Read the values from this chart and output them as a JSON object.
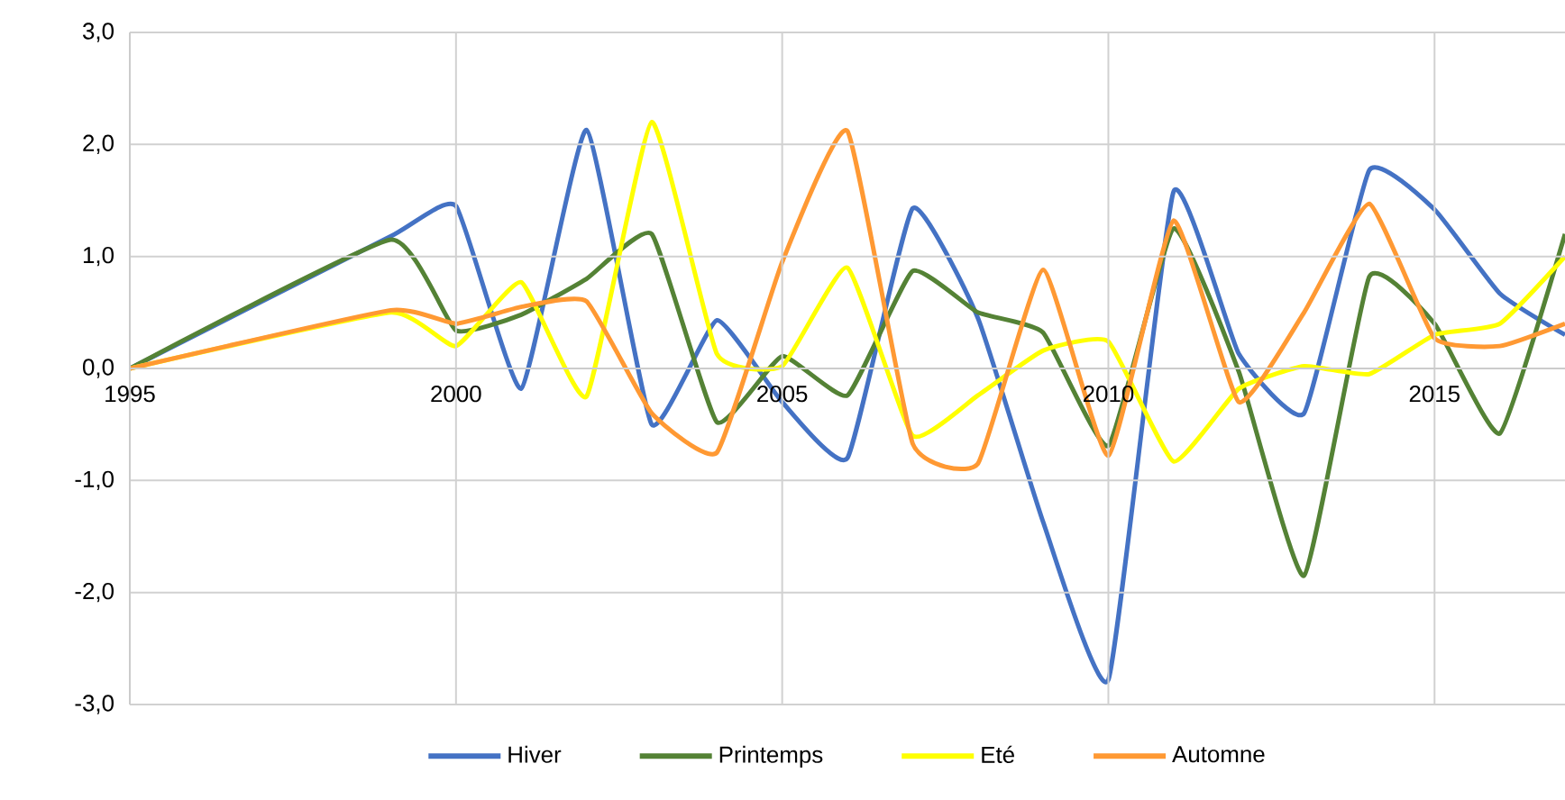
{
  "chart_data": {
    "type": "line",
    "x": [
      1995,
      1999,
      2000,
      2001,
      2002,
      2003,
      2004,
      2005,
      2006,
      2007,
      2008,
      2009,
      2010,
      2011,
      2012,
      2013,
      2014,
      2015,
      2016,
      2017
    ],
    "series": [
      {
        "name": "Hiver",
        "color": "#4472c4",
        "values": [
          0,
          1.18,
          1.45,
          -0.18,
          2.13,
          -0.5,
          0.43,
          -0.3,
          -0.8,
          1.43,
          0.45,
          -1.37,
          -2.78,
          1.58,
          0.13,
          -0.4,
          1.77,
          1.42,
          0.67,
          0.3
        ]
      },
      {
        "name": "Printemps",
        "color": "#548235",
        "values": [
          0,
          1.15,
          0.34,
          0.48,
          0.8,
          1.2,
          -0.48,
          0.11,
          -0.24,
          0.87,
          0.5,
          0.32,
          -0.69,
          1.25,
          -0.03,
          -1.85,
          0.82,
          0.4,
          -0.58,
          1.2
        ]
      },
      {
        "name": "Eté",
        "color": "#ffff00",
        "values": [
          0,
          0.5,
          0.2,
          0.77,
          -0.25,
          2.2,
          0.13,
          0.02,
          0.9,
          -0.6,
          -0.24,
          0.16,
          0.24,
          -0.83,
          -0.18,
          0.02,
          -0.05,
          0.3,
          0.4,
          1.0
        ]
      },
      {
        "name": "Automne",
        "color": "#ff9933",
        "values": [
          0,
          0.52,
          0.4,
          0.55,
          0.6,
          -0.4,
          -0.75,
          0.95,
          2.12,
          -0.67,
          -0.85,
          0.88,
          -0.78,
          1.32,
          -0.3,
          0.5,
          1.47,
          0.27,
          0.2,
          0.4
        ]
      }
    ],
    "xlim": [
      1995,
      2017
    ],
    "xticks": [
      1995,
      2000,
      2005,
      2010,
      2015
    ],
    "ylim": [
      -3,
      3
    ],
    "yticks": [
      {
        "value": -3,
        "label": "-3,0"
      },
      {
        "value": -2,
        "label": "-2,0"
      },
      {
        "value": -1,
        "label": "-1,0"
      },
      {
        "value": 0,
        "label": "0,0"
      },
      {
        "value": 1,
        "label": "1,0"
      },
      {
        "value": 2,
        "label": "2,0"
      },
      {
        "value": 3,
        "label": "3,0"
      }
    ],
    "grid": true,
    "legend": "bottom"
  }
}
